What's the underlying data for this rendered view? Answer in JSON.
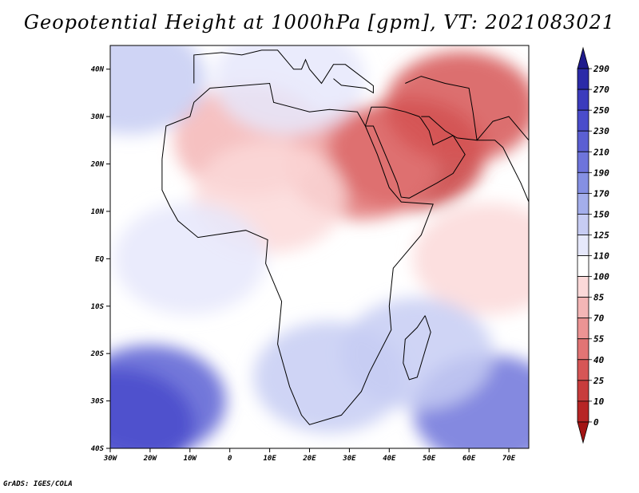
{
  "title": "Geopotential Height at 1000hPa [gpm], VT: 2021083021",
  "footer": "GrADS: IGES/COLA",
  "chart_data": {
    "type": "heatmap",
    "title": "Geopotential Height at 1000hPa [gpm], VT: 2021083021",
    "xlim": [
      -30,
      75
    ],
    "ylim": [
      -40,
      45
    ],
    "x_ticks": [
      "30W",
      "20W",
      "10W",
      "0",
      "10E",
      "20E",
      "30E",
      "40E",
      "50E",
      "60E",
      "70E"
    ],
    "y_ticks": [
      "40N",
      "30N",
      "20N",
      "10N",
      "EQ",
      "10S",
      "20S",
      "30S",
      "40S"
    ],
    "colorbar": {
      "levels": [
        "290",
        "270",
        "250",
        "230",
        "210",
        "190",
        "170",
        "150",
        "125",
        "110",
        "100",
        "85",
        "70",
        "55",
        "40",
        "25",
        "10",
        "0"
      ],
      "colors": [
        "#1e1a8c",
        "#2b2aa8",
        "#3b3bbd",
        "#4a4ccb",
        "#5b5fd3",
        "#6e74db",
        "#8590e3",
        "#a4aeeb",
        "#c7ccf3",
        "#e6e8fb",
        "#ffffff",
        "#fbd9d9",
        "#f4b6b6",
        "#ec9494",
        "#e27474",
        "#d65656",
        "#c83c3c",
        "#b72525",
        "#a31414"
      ],
      "extend": "both",
      "placement": "right"
    },
    "field_approx": [
      {
        "region": "Arabian Peninsula",
        "lon": 45,
        "lat": 22,
        "value": 20
      },
      {
        "region": "Red Sea / Sudan",
        "lon": 33,
        "lat": 20,
        "value": 40
      },
      {
        "region": "Iran",
        "lon": 58,
        "lat": 32,
        "value": 25
      },
      {
        "region": "Sahara",
        "lon": 5,
        "lat": 25,
        "value": 75
      },
      {
        "region": "Sahel",
        "lon": 10,
        "lat": 13,
        "value": 85
      },
      {
        "region": "Equatorial Atlantic",
        "lon": -10,
        "lat": 0,
        "value": 110
      },
      {
        "region": "Indian Ocean",
        "lon": 65,
        "lat": 0,
        "value": 95
      },
      {
        "region": "Southern Africa",
        "lon": 25,
        "lat": -25,
        "value": 140
      },
      {
        "region": "South Atlantic",
        "lon": -20,
        "lat": -30,
        "value": 210
      },
      {
        "region": "South Atlantic SW corner",
        "lon": -28,
        "lat": -35,
        "value": 240
      },
      {
        "region": "South Indian Ocean",
        "lon": 65,
        "lat": -32,
        "value": 200
      },
      {
        "region": "Madagascar",
        "lon": 47,
        "lat": -20,
        "value": 135
      },
      {
        "region": "Mediterranean",
        "lon": 15,
        "lat": 38,
        "value": 115
      },
      {
        "region": "North Atlantic",
        "lon": -25,
        "lat": 38,
        "value": 140
      }
    ]
  }
}
